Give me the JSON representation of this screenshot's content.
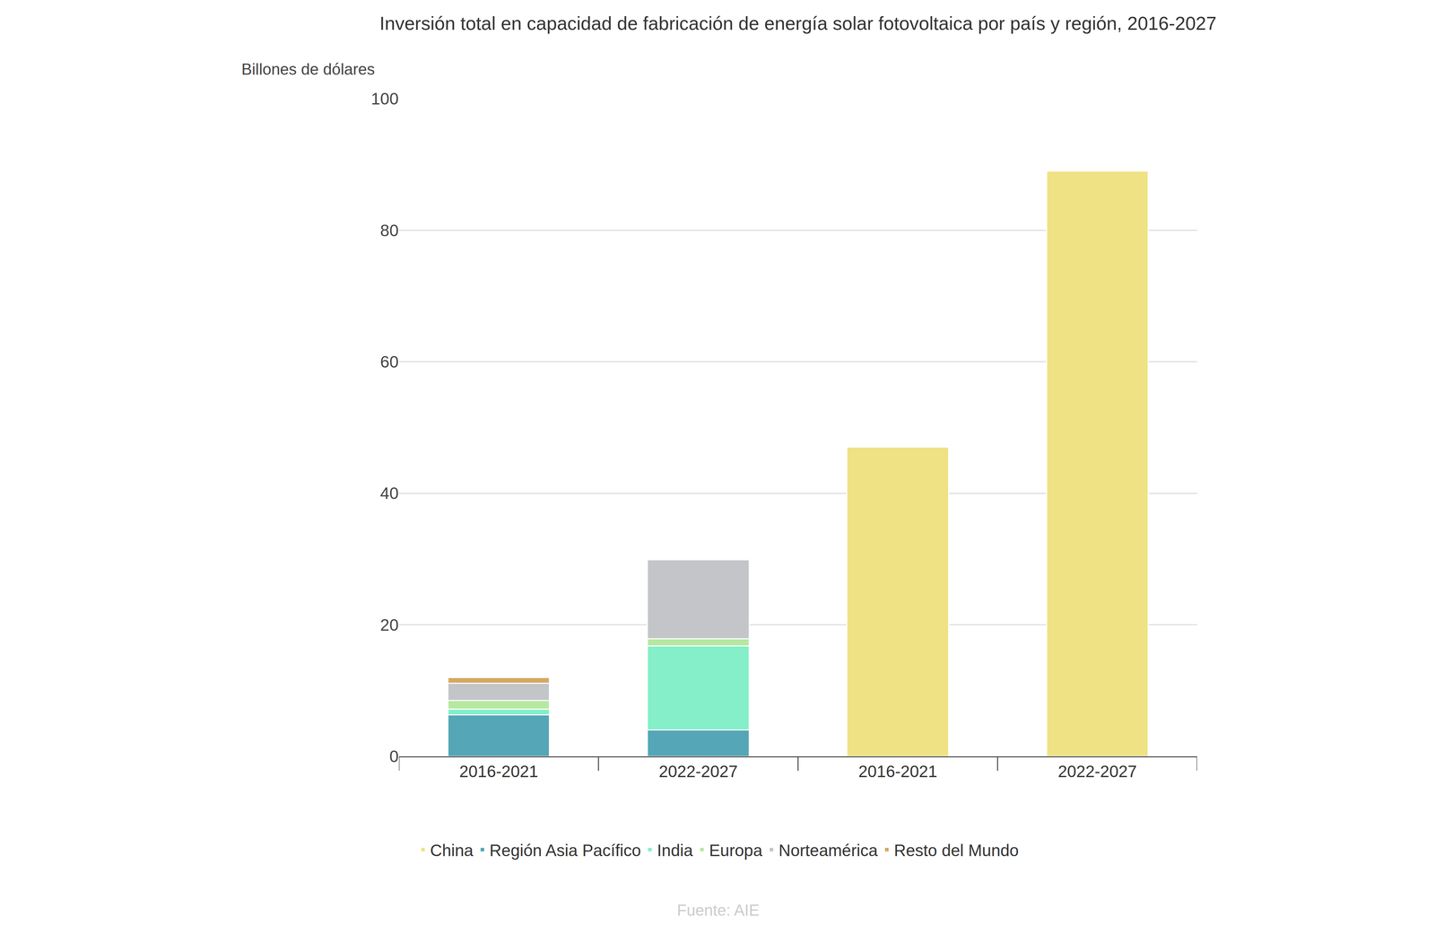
{
  "chart_data": {
    "type": "bar",
    "title": "Inversión total en capacidad de fabricación de energía solar fotovoltaica por país y región, 2016-2027",
    "ylabel": "Billones de dólares",
    "annotations": [
      "Fuente: AIE"
    ],
    "categories": [
      "2016-2021",
      "2022-2027",
      "2016-2021",
      "2022-2027"
    ],
    "series": [
      {
        "name": "China",
        "color": "#EFE285",
        "values": [
          null,
          null,
          47,
          89
        ]
      },
      {
        "name": "Región Asia Pacífico",
        "color": "#55A6B7",
        "values": [
          6.3,
          4.0,
          null,
          null
        ]
      },
      {
        "name": "India",
        "color": "#84EFC9",
        "values": [
          0.9,
          12.8,
          null,
          null
        ]
      },
      {
        "name": "Europa",
        "color": "#B6E8A0",
        "values": [
          1.3,
          1.1,
          null,
          null
        ]
      },
      {
        "name": "Norteamérica",
        "color": "#C4C5C8",
        "values": [
          2.6,
          12.0,
          null,
          null
        ]
      },
      {
        "name": "Resto del Mundo",
        "color": "#D4A862",
        "values": [
          0.9,
          null,
          null,
          null
        ]
      }
    ],
    "ylim": [
      0,
      100
    ],
    "yticks": [
      0,
      20,
      40,
      60,
      80,
      100
    ],
    "grid": true,
    "stacked": true,
    "legend": "bottom"
  }
}
